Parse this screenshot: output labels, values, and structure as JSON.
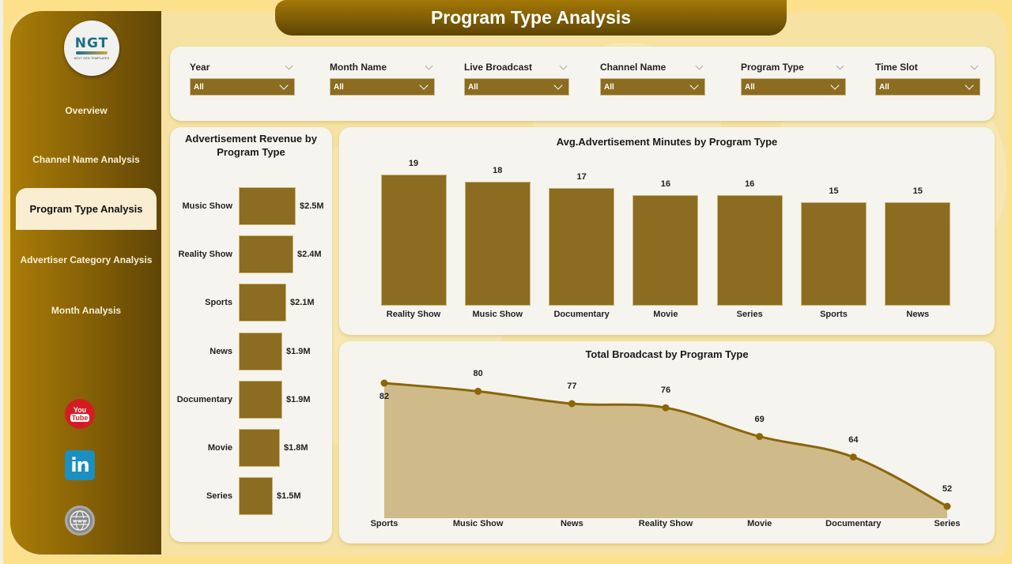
{
  "header": {
    "title": "Program Type Analysis"
  },
  "logo": {
    "text": "NGT",
    "tagline": "NEXT GEN TEMPLATES"
  },
  "sidebar": {
    "items": [
      {
        "label": "Overview",
        "active": false
      },
      {
        "label": "Channel Name Analysis",
        "active": false
      },
      {
        "label": "Program Type Analysis",
        "active": true
      },
      {
        "label": "Advertiser Category Analysis",
        "active": false
      },
      {
        "label": "Month Analysis",
        "active": false
      }
    ],
    "social": [
      {
        "name": "youtube-icon",
        "top_text": "You",
        "bottom_text": "Tube"
      },
      {
        "name": "linkedin-icon",
        "text": "in"
      },
      {
        "name": "website-icon",
        "text": "www"
      }
    ]
  },
  "filters": [
    {
      "label": "Year",
      "value": "All"
    },
    {
      "label": "Month Name",
      "value": "All"
    },
    {
      "label": "Live Broadcast",
      "value": "All"
    },
    {
      "label": "Channel Name",
      "value": "All"
    },
    {
      "label": "Program Type",
      "value": "All"
    },
    {
      "label": "Time Slot",
      "value": "All"
    }
  ],
  "colors": {
    "bar": "#8b6c20",
    "line": "#8b6508",
    "area": "#cfbb8a",
    "sidebar_start": "#a97d08",
    "sidebar_end": "#5f4506",
    "active_nav_bg": "#f9edd2",
    "background": "#f6e3a3"
  },
  "chart_data": [
    {
      "type": "bar",
      "orientation": "horizontal",
      "title": "Advertisement Revenue by Program Type",
      "categories": [
        "Music Show",
        "Reality Show",
        "Sports",
        "News",
        "Documentary",
        "Movie",
        "Series"
      ],
      "values": [
        2.5,
        2.4,
        2.1,
        1.9,
        1.9,
        1.8,
        1.5
      ],
      "labels": [
        "$2.5M",
        "$2.4M",
        "$2.1M",
        "$1.9M",
        "$1.9M",
        "$1.8M",
        "$1.5M"
      ],
      "unit": "USD millions",
      "xlabel": "",
      "ylabel": ""
    },
    {
      "type": "bar",
      "orientation": "vertical",
      "title": "Avg.Advertisement Minutes by Program Type",
      "categories": [
        "Reality Show",
        "Music Show",
        "Documentary",
        "Movie",
        "Series",
        "Sports",
        "News"
      ],
      "values": [
        19,
        18,
        17,
        16,
        16,
        15,
        15
      ],
      "labels": [
        "19",
        "18",
        "17",
        "16",
        "16",
        "15",
        "15"
      ],
      "xlabel": "",
      "ylabel": ""
    },
    {
      "type": "area",
      "title": "Total Broadcast by Program Type",
      "categories": [
        "Sports",
        "Music Show",
        "News",
        "Reality Show",
        "Movie",
        "Documentary",
        "Series"
      ],
      "values": [
        82,
        80,
        77,
        76,
        69,
        64,
        52
      ],
      "labels": [
        "82",
        "80",
        "77",
        "76",
        "69",
        "64",
        "52"
      ],
      "xlabel": "",
      "ylabel": ""
    }
  ]
}
